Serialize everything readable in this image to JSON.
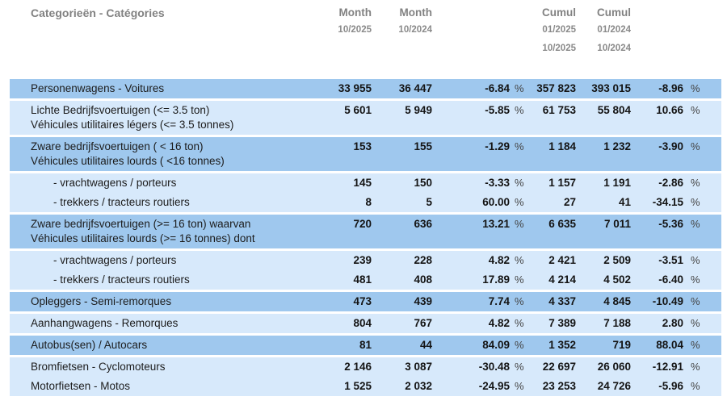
{
  "header": {
    "category_label": "Categorieën - Catégories",
    "month_current": {
      "title": "Month",
      "dates": [
        "10/2025"
      ]
    },
    "month_previous": {
      "title": "Month",
      "dates": [
        "10/2024"
      ]
    },
    "cumul_current": {
      "title": "Cumul",
      "dates": [
        "01/2025",
        "10/2025"
      ]
    },
    "cumul_previous": {
      "title": "Cumul",
      "dates": [
        "01/2024",
        "10/2024"
      ]
    }
  },
  "table": {
    "percent_sign": "%",
    "colors": {
      "row_dark": "#9fc8ee",
      "row_light": "#d7e9fb",
      "header_text": "#828282",
      "cell_text": "#141414"
    },
    "rows": [
      {
        "label_lines": [
          "Personenwagens - Voitures"
        ],
        "indent": false,
        "shade": "dark",
        "month_current": "33 955",
        "month_previous": "36 447",
        "month_pct": "-6.84",
        "cumul_current": "357 823",
        "cumul_previous": "393 015",
        "cumul_pct": "-8.96"
      },
      {
        "label_lines": [
          "Lichte Bedrijfsvoertuigen (<= 3.5 ton)",
          "Véhicules utilitaires légers (<= 3.5 tonnes)"
        ],
        "indent": false,
        "shade": "light",
        "month_current": "5 601",
        "month_previous": "5 949",
        "month_pct": "-5.85",
        "cumul_current": "61 753",
        "cumul_previous": "55 804",
        "cumul_pct": "10.66"
      },
      {
        "label_lines": [
          "Zware bedrijfsvoertuigen ( < 16 ton)",
          "Véhicules utilitaires lourds ( <16 tonnes)"
        ],
        "indent": false,
        "shade": "dark",
        "month_current": "153",
        "month_previous": "155",
        "month_pct": "-1.29",
        "cumul_current": "1 184",
        "cumul_previous": "1 232",
        "cumul_pct": "-3.90"
      },
      {
        "label_lines": [
          "- vrachtwagens / porteurs"
        ],
        "indent": true,
        "shade": "light",
        "month_current": "145",
        "month_previous": "150",
        "month_pct": "-3.33",
        "cumul_current": "1 157",
        "cumul_previous": "1 191",
        "cumul_pct": "-2.86"
      },
      {
        "label_lines": [
          "- trekkers / tracteurs routiers"
        ],
        "indent": true,
        "shade": "light",
        "month_current": "8",
        "month_previous": "5",
        "month_pct": "60.00",
        "cumul_current": "27",
        "cumul_previous": "41",
        "cumul_pct": "-34.15"
      },
      {
        "label_lines": [
          "Zware bedrijfsvoertuigen (>= 16 ton) waarvan",
          "Véhicules utilitaires lourds (>= 16 tonnes) dont"
        ],
        "indent": false,
        "shade": "dark",
        "month_current": "720",
        "month_previous": "636",
        "month_pct": "13.21",
        "cumul_current": "6 635",
        "cumul_previous": "7 011",
        "cumul_pct": "-5.36"
      },
      {
        "label_lines": [
          "- vrachtwagens / porteurs"
        ],
        "indent": true,
        "shade": "light",
        "month_current": "239",
        "month_previous": "228",
        "month_pct": "4.82",
        "cumul_current": "2 421",
        "cumul_previous": "2 509",
        "cumul_pct": "-3.51"
      },
      {
        "label_lines": [
          "- trekkers / tracteurs routiers"
        ],
        "indent": true,
        "shade": "light",
        "month_current": "481",
        "month_previous": "408",
        "month_pct": "17.89",
        "cumul_current": "4 214",
        "cumul_previous": "4 502",
        "cumul_pct": "-6.40"
      },
      {
        "label_lines": [
          "Opleggers - Semi-remorques"
        ],
        "indent": false,
        "shade": "dark",
        "month_current": "473",
        "month_previous": "439",
        "month_pct": "7.74",
        "cumul_current": "4 337",
        "cumul_previous": "4 845",
        "cumul_pct": "-10.49"
      },
      {
        "label_lines": [
          "Aanhangwagens - Remorques"
        ],
        "indent": false,
        "shade": "light",
        "month_current": "804",
        "month_previous": "767",
        "month_pct": "4.82",
        "cumul_current": "7 389",
        "cumul_previous": "7 188",
        "cumul_pct": "2.80"
      },
      {
        "label_lines": [
          "Autobus(sen) / Autocars"
        ],
        "indent": false,
        "shade": "dark",
        "month_current": "81",
        "month_previous": "44",
        "month_pct": "84.09",
        "cumul_current": "1 352",
        "cumul_previous": "719",
        "cumul_pct": "88.04"
      },
      {
        "label_lines": [
          "Bromfietsen - Cyclomoteurs"
        ],
        "indent": false,
        "shade": "light",
        "month_current": "2 146",
        "month_previous": "3 087",
        "month_pct": "-30.48",
        "cumul_current": "22 697",
        "cumul_previous": "26 060",
        "cumul_pct": "-12.91"
      },
      {
        "label_lines": [
          "Motorfietsen - Motos"
        ],
        "indent": false,
        "shade": "light",
        "month_current": "1 525",
        "month_previous": "2 032",
        "month_pct": "-24.95",
        "cumul_current": "23 253",
        "cumul_previous": "24 726",
        "cumul_pct": "-5.96"
      }
    ]
  }
}
